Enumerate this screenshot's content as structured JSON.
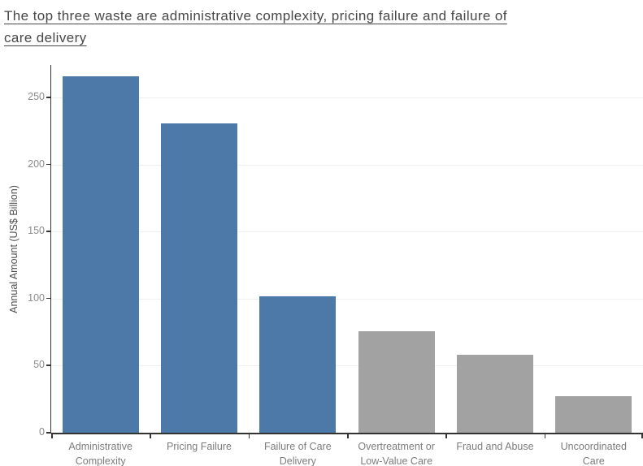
{
  "title": {
    "lines": [
      "The top three waste are administrative complexity, pricing failure and failure of",
      "care delivery"
    ],
    "full_text": "The top three waste are administrative complexity, pricing failure and failure of care delivery"
  },
  "chart_data": {
    "type": "bar",
    "title": "The top three waste are administrative complexity, pricing failure and failure of care delivery",
    "categories": [
      "Administrative Complexity",
      "Pricing Failure",
      "Failure of Care Delivery",
      "Overtreatment or Low-Value Care",
      "Fraud and Abuse",
      "Uncoordinated Care"
    ],
    "category_label_lines": [
      [
        "Administrative",
        "Complexity"
      ],
      [
        "Pricing Failure"
      ],
      [
        "Failure of Care",
        "Delivery"
      ],
      [
        "Overtreatment or",
        "Low-Value Care"
      ],
      [
        "Fraud and Abuse"
      ],
      [
        "Uncoordinated",
        "Care"
      ]
    ],
    "values": [
      266,
      231,
      102,
      76,
      58,
      27
    ],
    "bar_colors": [
      "#4d79a8",
      "#4d79a8",
      "#4d79a8",
      "#a2a2a2",
      "#a2a2a2",
      "#a2a2a2"
    ],
    "xlabel": "",
    "ylabel": "Annual Amount (US$ Billion)",
    "y_ticks": [
      0,
      50,
      100,
      150,
      200,
      250
    ],
    "ylim": [
      0,
      274.5
    ],
    "grid": true,
    "legend": false
  },
  "colors": {
    "highlight_blue": "#4d79a8",
    "muted_gray": "#a2a2a2",
    "axis_line": "#333333",
    "gridline": "#efefef",
    "tick_label": "#8b8b8b",
    "axis_title": "#4e4e4e",
    "category_label": "#7c7c7c",
    "title_text": "#474747",
    "background": "#ffffff"
  }
}
